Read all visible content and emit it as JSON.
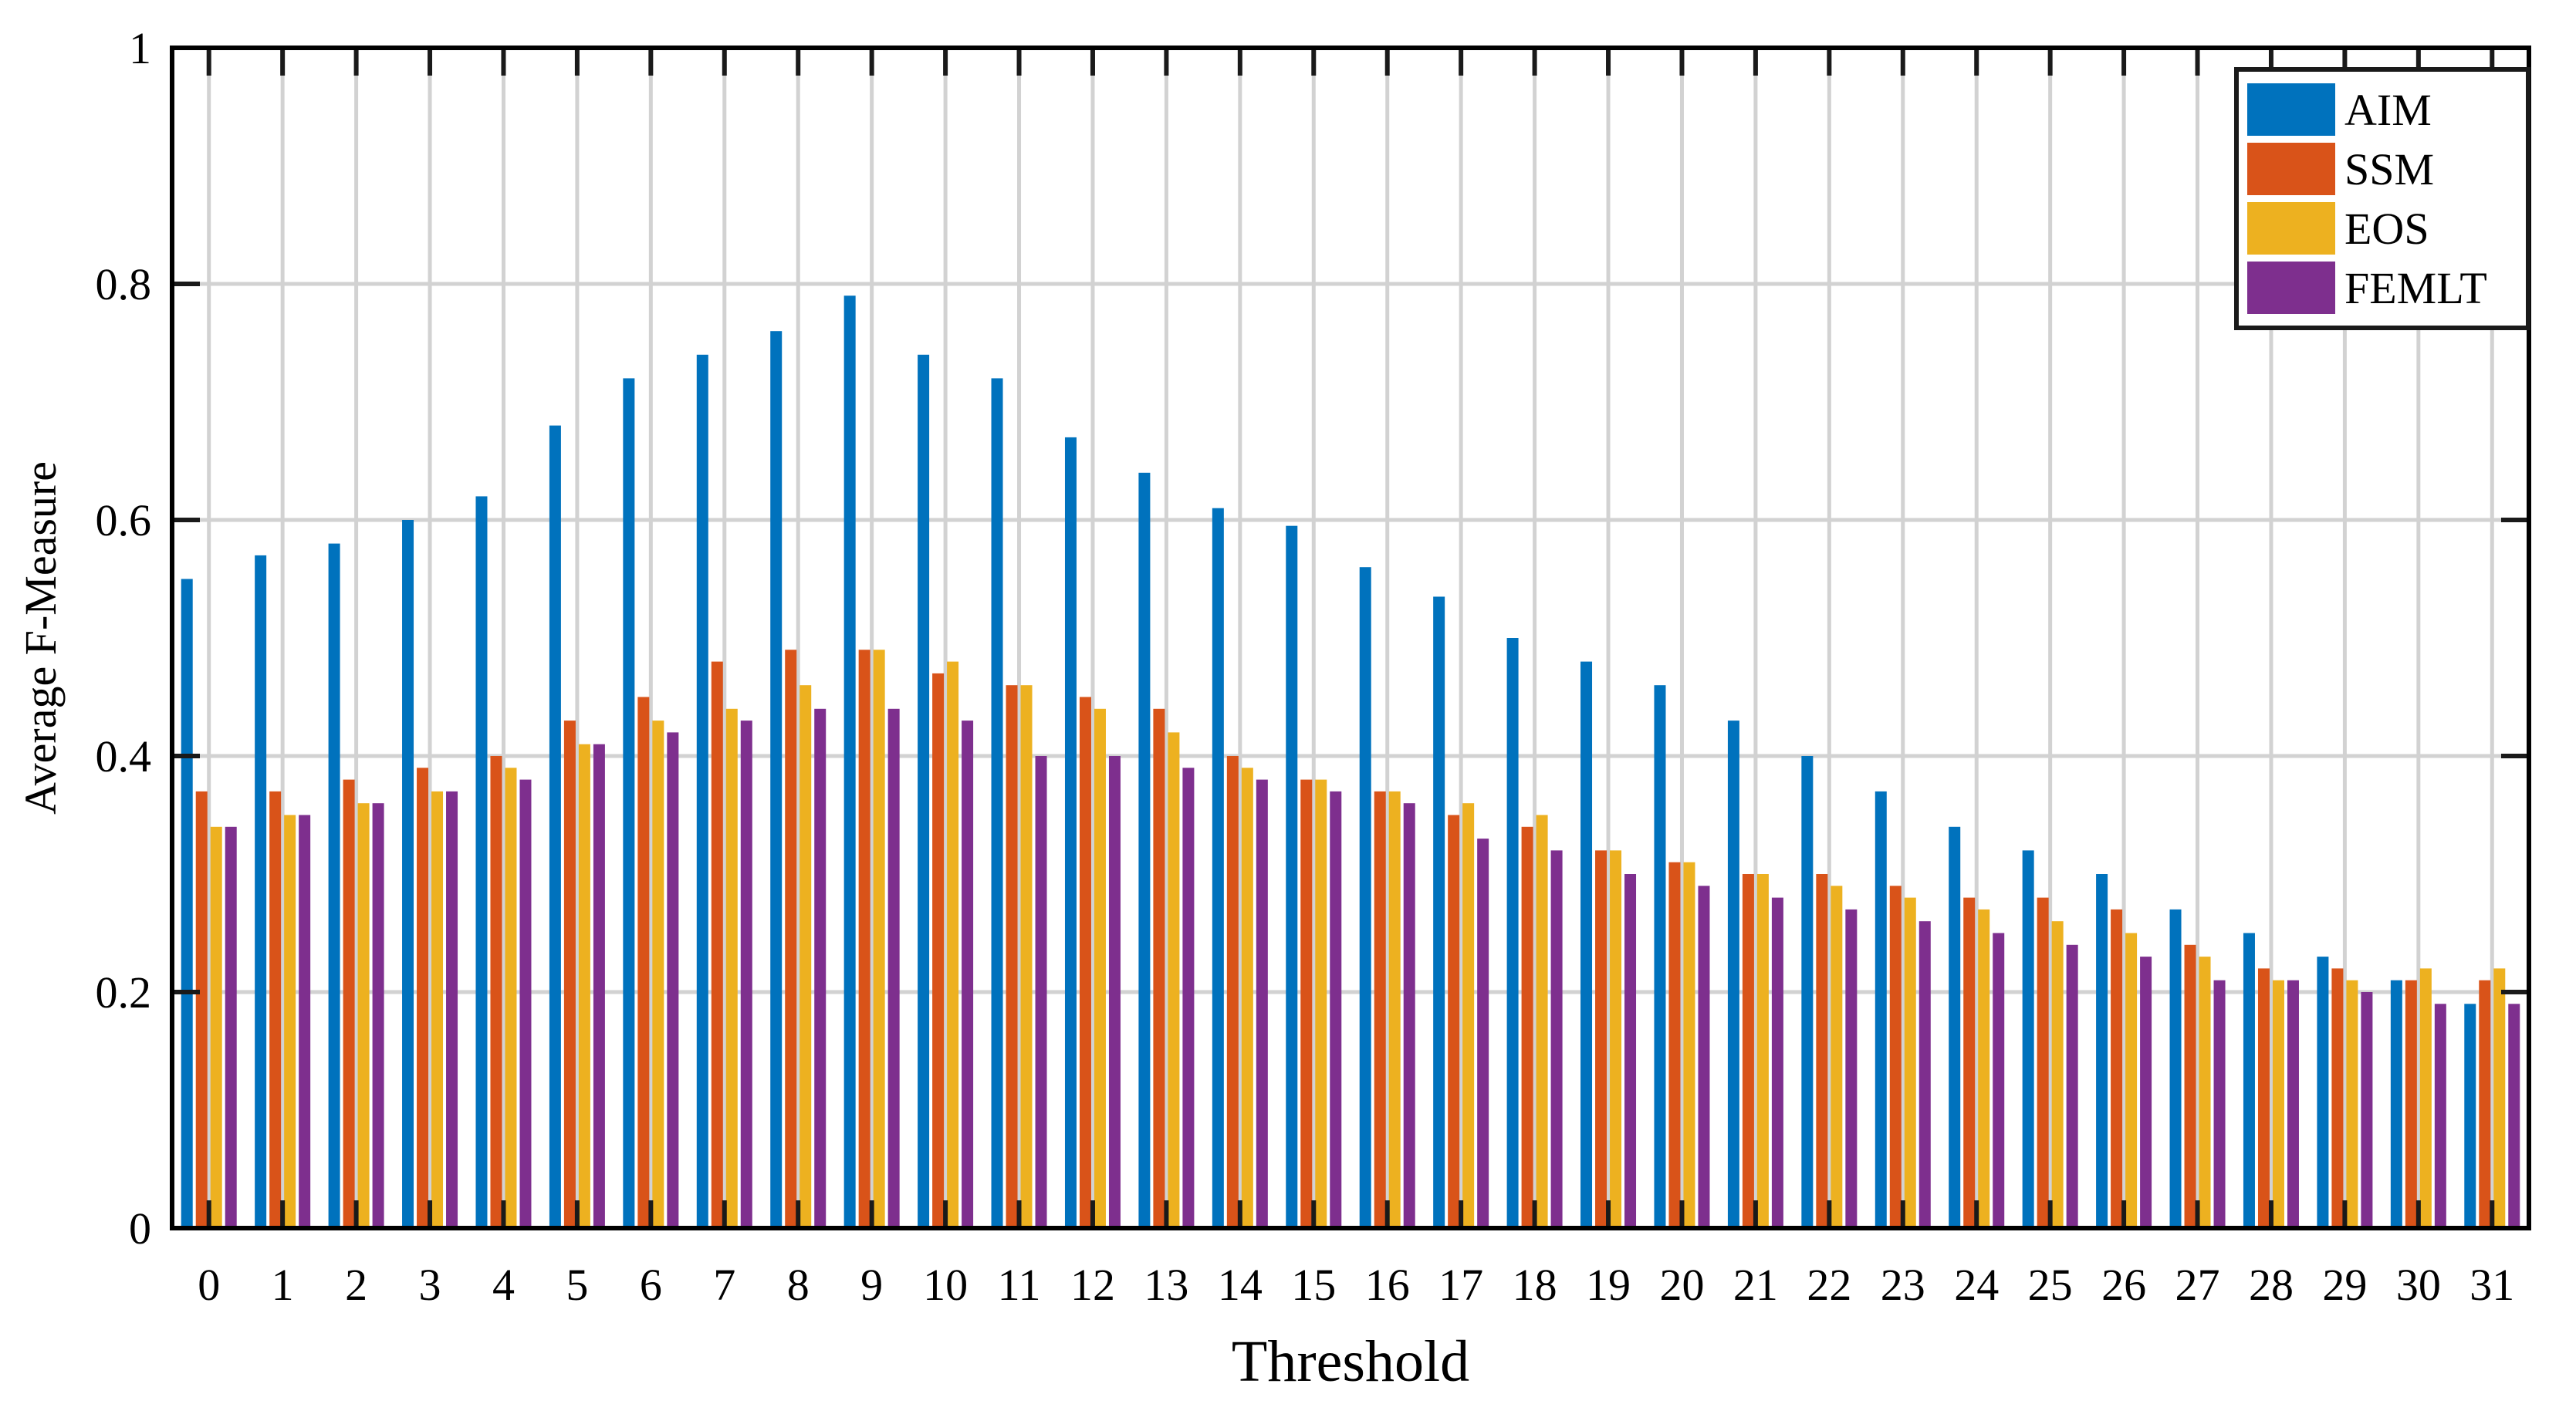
{
  "chart_data": {
    "type": "bar",
    "title": "",
    "xlabel": "Threshold",
    "ylabel": "Average F-Measure",
    "ylim": [
      0,
      1
    ],
    "yticks": [
      0,
      0.2,
      0.4,
      0.6,
      0.8,
      1
    ],
    "ytick_labels": [
      "0",
      "0.2",
      "0.4",
      "0.6",
      "0.8",
      "1"
    ],
    "grid": true,
    "legend_position": "top-right",
    "categories": [
      "0",
      "1",
      "2",
      "3",
      "4",
      "5",
      "6",
      "7",
      "8",
      "9",
      "10",
      "11",
      "12",
      "13",
      "14",
      "15",
      "16",
      "17",
      "18",
      "19",
      "20",
      "21",
      "22",
      "23",
      "24",
      "25",
      "26",
      "27",
      "28",
      "29",
      "30",
      "31"
    ],
    "series": [
      {
        "name": "AIM",
        "color": "#0072BD",
        "values": [
          0.55,
          0.57,
          0.58,
          0.6,
          0.62,
          0.68,
          0.72,
          0.74,
          0.76,
          0.79,
          0.74,
          0.72,
          0.67,
          0.64,
          0.61,
          0.595,
          0.56,
          0.535,
          0.5,
          0.48,
          0.46,
          0.43,
          0.4,
          0.37,
          0.34,
          0.32,
          0.3,
          0.27,
          0.25,
          0.23,
          0.21,
          0.19
        ]
      },
      {
        "name": "SSM",
        "color": "#D95319",
        "values": [
          0.37,
          0.37,
          0.38,
          0.39,
          0.4,
          0.43,
          0.45,
          0.48,
          0.49,
          0.49,
          0.47,
          0.46,
          0.45,
          0.44,
          0.4,
          0.38,
          0.37,
          0.35,
          0.34,
          0.32,
          0.31,
          0.3,
          0.3,
          0.29,
          0.28,
          0.28,
          0.27,
          0.24,
          0.22,
          0.22,
          0.21,
          0.21
        ]
      },
      {
        "name": "EOS",
        "color": "#EDB120",
        "values": [
          0.34,
          0.35,
          0.36,
          0.37,
          0.39,
          0.41,
          0.43,
          0.44,
          0.46,
          0.49,
          0.48,
          0.46,
          0.44,
          0.42,
          0.39,
          0.38,
          0.37,
          0.36,
          0.35,
          0.32,
          0.31,
          0.3,
          0.29,
          0.28,
          0.27,
          0.26,
          0.25,
          0.23,
          0.21,
          0.21,
          0.22,
          0.22
        ]
      },
      {
        "name": "FEMLT",
        "color": "#7E2F8E",
        "values": [
          0.34,
          0.35,
          0.36,
          0.37,
          0.38,
          0.41,
          0.42,
          0.43,
          0.44,
          0.44,
          0.43,
          0.4,
          0.4,
          0.39,
          0.38,
          0.37,
          0.36,
          0.33,
          0.32,
          0.3,
          0.29,
          0.28,
          0.27,
          0.26,
          0.25,
          0.24,
          0.23,
          0.21,
          0.21,
          0.2,
          0.19,
          0.19
        ]
      }
    ]
  }
}
